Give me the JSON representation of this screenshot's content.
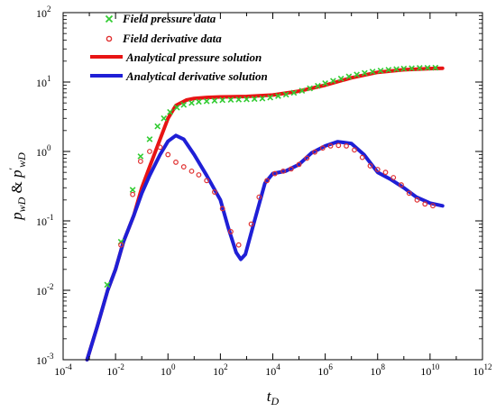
{
  "chart_data": {
    "type": "scatter",
    "x_scale": "log",
    "y_scale": "log",
    "xlim": [
      0.0001,
      1000000000000
    ],
    "ylim": [
      0.001,
      100
    ],
    "xlabel_main": "t",
    "xlabel_sub": "D",
    "ylabel_parts": {
      "p1": "p",
      "s1": "wD",
      "amp": " & ",
      "p2": "p",
      "sup": "′",
      "s2": "wD"
    },
    "x_ticks": [
      {
        "base": "10",
        "exp": "-4"
      },
      {
        "base": "10",
        "exp": "-2"
      },
      {
        "base": "10",
        "exp": "0"
      },
      {
        "base": "10",
        "exp": "2"
      },
      {
        "base": "10",
        "exp": "4"
      },
      {
        "base": "10",
        "exp": "6"
      },
      {
        "base": "10",
        "exp": "8"
      },
      {
        "base": "10",
        "exp": "10"
      },
      {
        "base": "10",
        "exp": "12"
      }
    ],
    "y_ticks": [
      {
        "label": "10",
        "exp": "-3",
        "value": 0.001
      },
      {
        "label": "10",
        "exp": "-2",
        "value": 0.01
      },
      {
        "label": "10",
        "exp": "-1",
        "value": 0.1
      },
      {
        "label": "10",
        "exp": "0",
        "value": 1
      },
      {
        "label": "10",
        "exp": "1",
        "value": 10
      },
      {
        "label": "10",
        "exp": "2",
        "value": 100
      }
    ],
    "legend_position": "top-center",
    "legend": [
      {
        "label": "Field pressure data",
        "marker": "x",
        "color": "#33cc33"
      },
      {
        "label": "Field derivative data",
        "marker": "o",
        "color": "#e03030"
      },
      {
        "label": "Analytical pressure solution",
        "marker": "line",
        "color": "#e81414"
      },
      {
        "label": "Analytical derivative solution",
        "marker": "line",
        "color": "#1f1fd6"
      }
    ],
    "series": [
      {
        "name": "Analytical pressure solution",
        "style": "line",
        "color": "#e81414",
        "points": [
          [
            0.00082,
            0.001
          ],
          [
            0.002,
            0.003
          ],
          [
            0.005,
            0.01
          ],
          [
            0.01,
            0.02
          ],
          [
            0.02,
            0.05
          ],
          [
            0.05,
            0.12
          ],
          [
            0.1,
            0.3
          ],
          [
            0.2,
            0.6
          ],
          [
            0.5,
            1.5
          ],
          [
            1,
            3.0
          ],
          [
            2,
            4.6
          ],
          [
            5,
            5.5
          ],
          [
            10,
            5.8
          ],
          [
            30,
            6.0
          ],
          [
            100,
            6.1
          ],
          [
            1000,
            6.2
          ],
          [
            10000,
            6.5
          ],
          [
            100000,
            7.4
          ],
          [
            1000000,
            9.0
          ],
          [
            10000000,
            11.5
          ],
          [
            100000000,
            13.8
          ],
          [
            1000000000,
            15.0
          ],
          [
            10000000000,
            15.6
          ],
          [
            30000000000,
            15.8
          ]
        ]
      },
      {
        "name": "Analytical derivative solution",
        "style": "line",
        "color": "#1f1fd6",
        "points": [
          [
            0.00082,
            0.001
          ],
          [
            0.002,
            0.003
          ],
          [
            0.005,
            0.01
          ],
          [
            0.01,
            0.02
          ],
          [
            0.02,
            0.05
          ],
          [
            0.05,
            0.12
          ],
          [
            0.1,
            0.25
          ],
          [
            0.2,
            0.45
          ],
          [
            0.5,
            0.9
          ],
          [
            1,
            1.4
          ],
          [
            2,
            1.7
          ],
          [
            4,
            1.5
          ],
          [
            10,
            0.9
          ],
          [
            30,
            0.45
          ],
          [
            100,
            0.2
          ],
          [
            200,
            0.08
          ],
          [
            400,
            0.035
          ],
          [
            600,
            0.028
          ],
          [
            900,
            0.033
          ],
          [
            2000,
            0.1
          ],
          [
            5000,
            0.35
          ],
          [
            10000,
            0.48
          ],
          [
            30000,
            0.52
          ],
          [
            100000,
            0.65
          ],
          [
            300000,
            0.95
          ],
          [
            1000000,
            1.2
          ],
          [
            3000000,
            1.38
          ],
          [
            10000000,
            1.3
          ],
          [
            30000000,
            0.9
          ],
          [
            100000000,
            0.5
          ],
          [
            300000000,
            0.4
          ],
          [
            1000000000,
            0.3
          ],
          [
            3000000000,
            0.22
          ],
          [
            10000000000,
            0.18
          ],
          [
            30000000000,
            0.165
          ]
        ]
      },
      {
        "name": "Field pressure data",
        "style": "x",
        "color": "#33cc33",
        "points": [
          [
            0.0048,
            0.012
          ],
          [
            0.016,
            0.05
          ],
          [
            0.045,
            0.28
          ],
          [
            0.09,
            0.85
          ],
          [
            0.2,
            1.5
          ],
          [
            0.4,
            2.3
          ],
          [
            0.7,
            3.0
          ],
          [
            1.2,
            3.7
          ],
          [
            2.2,
            4.3
          ],
          [
            4,
            4.7
          ],
          [
            8,
            5.0
          ],
          [
            15,
            5.2
          ],
          [
            30,
            5.3
          ],
          [
            60,
            5.4
          ],
          [
            120,
            5.5
          ],
          [
            250,
            5.55
          ],
          [
            500,
            5.6
          ],
          [
            1000,
            5.65
          ],
          [
            2000,
            5.7
          ],
          [
            4000,
            5.8
          ],
          [
            8000,
            6.0
          ],
          [
            16000,
            6.3
          ],
          [
            32000,
            6.6
          ],
          [
            64000,
            7.0
          ],
          [
            130000,
            7.5
          ],
          [
            260000,
            8.1
          ],
          [
            520000,
            8.8
          ],
          [
            1000000,
            9.6
          ],
          [
            2000000,
            10.4
          ],
          [
            4000000,
            11.2
          ],
          [
            8000000,
            12.0
          ],
          [
            16000000,
            12.8
          ],
          [
            32000000,
            13.5
          ],
          [
            64000000,
            14.1
          ],
          [
            130000000,
            14.6
          ],
          [
            260000000,
            15.0
          ],
          [
            520000000,
            15.3
          ],
          [
            1000000000,
            15.6
          ],
          [
            2000000000,
            15.8
          ],
          [
            4000000000,
            15.95
          ],
          [
            8000000000,
            16.05
          ],
          [
            16000000000,
            16.1
          ]
        ]
      },
      {
        "name": "Field derivative data",
        "style": "o",
        "color": "#e03030",
        "points": [
          [
            0.016,
            0.045
          ],
          [
            0.045,
            0.24
          ],
          [
            0.09,
            0.72
          ],
          [
            0.2,
            1.0
          ],
          [
            0.5,
            1.15
          ],
          [
            1,
            0.9
          ],
          [
            2,
            0.7
          ],
          [
            4,
            0.6
          ],
          [
            8,
            0.52
          ],
          [
            15,
            0.46
          ],
          [
            30,
            0.38
          ],
          [
            60,
            0.26
          ],
          [
            120,
            0.15
          ],
          [
            250,
            0.07
          ],
          [
            500,
            0.045
          ],
          [
            1500,
            0.09
          ],
          [
            3000,
            0.22
          ],
          [
            6000,
            0.38
          ],
          [
            12000,
            0.48
          ],
          [
            25000,
            0.52
          ],
          [
            50000,
            0.56
          ],
          [
            100000,
            0.65
          ],
          [
            200000,
            0.8
          ],
          [
            400000,
            0.98
          ],
          [
            800000,
            1.12
          ],
          [
            1600000,
            1.2
          ],
          [
            3200000,
            1.22
          ],
          [
            6400000,
            1.2
          ],
          [
            13000000,
            1.05
          ],
          [
            26000000,
            0.82
          ],
          [
            52000000,
            0.62
          ],
          [
            100000000,
            0.55
          ],
          [
            200000000,
            0.5
          ],
          [
            400000000,
            0.42
          ],
          [
            800000000,
            0.33
          ],
          [
            1600000000,
            0.25
          ],
          [
            3200000000,
            0.2
          ],
          [
            6400000000,
            0.175
          ],
          [
            12800000000,
            0.165
          ]
        ]
      }
    ]
  }
}
